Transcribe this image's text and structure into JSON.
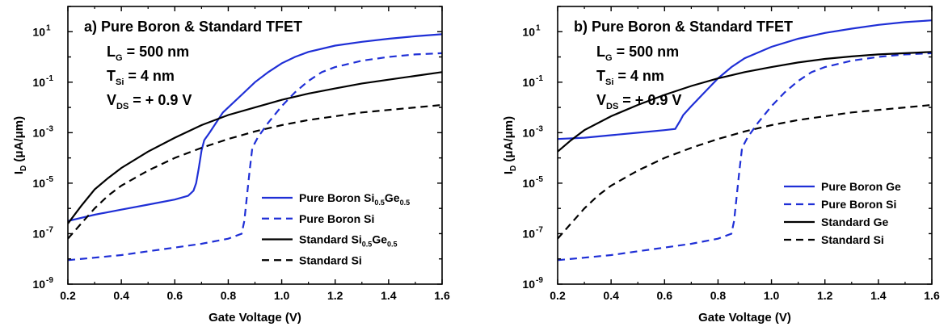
{
  "chart_data": [
    {
      "type": "line",
      "panel_label": "a)",
      "title": "Pure Boron & Standard TFET",
      "annotations": [
        {
          "main": "L",
          "sub": "G",
          "rest": " = 500 nm"
        },
        {
          "main": "T",
          "sub": "Si",
          "rest": " = 4 nm"
        },
        {
          "main": "V",
          "sub": "DS",
          "rest": " = + 0.9 V"
        }
      ],
      "xlabel": "Gate Voltage (V)",
      "ylabel": {
        "main": "I",
        "sub": "D",
        "rest": " (μA/μm)"
      },
      "xlim": [
        0.2,
        1.6
      ],
      "ylim_log10": [
        -9,
        2
      ],
      "yscale": "log",
      "x_ticks": [
        "0.2",
        "0.4",
        "0.6",
        "0.8",
        "1.0",
        "1.2",
        "1.4",
        "1.6"
      ],
      "y_ticks": [
        {
          "base": "10",
          "exp": "1"
        },
        {
          "base": "10",
          "exp": "-1"
        },
        {
          "base": "10",
          "exp": "-3"
        },
        {
          "base": "10",
          "exp": "-5"
        },
        {
          "base": "10",
          "exp": "-7"
        },
        {
          "base": "10",
          "exp": "-9"
        }
      ],
      "legend_position": "lower-right",
      "series": [
        {
          "name_parts": [
            {
              "t": "Pure Boron Si"
            },
            {
              "t": "0.5",
              "sub": true
            },
            {
              "t": "Ge"
            },
            {
              "t": "0.5",
              "sub": true
            }
          ],
          "color": "#1f2fd6",
          "style": "solid",
          "points": [
            [
              0.2,
              -6.5
            ],
            [
              0.3,
              -6.25
            ],
            [
              0.4,
              -6.05
            ],
            [
              0.5,
              -5.85
            ],
            [
              0.6,
              -5.65
            ],
            [
              0.65,
              -5.5
            ],
            [
              0.67,
              -5.3
            ],
            [
              0.68,
              -5.0
            ],
            [
              0.69,
              -4.4
            ],
            [
              0.7,
              -3.7
            ],
            [
              0.71,
              -3.3
            ],
            [
              0.73,
              -3.0
            ],
            [
              0.78,
              -2.2
            ],
            [
              0.85,
              -1.5
            ],
            [
              0.9,
              -1.0
            ],
            [
              0.95,
              -0.6
            ],
            [
              1.0,
              -0.25
            ],
            [
              1.05,
              0.0
            ],
            [
              1.1,
              0.2
            ],
            [
              1.2,
              0.45
            ],
            [
              1.3,
              0.6
            ],
            [
              1.4,
              0.72
            ],
            [
              1.5,
              0.82
            ],
            [
              1.6,
              0.9
            ]
          ]
        },
        {
          "name_parts": [
            {
              "t": "Pure Boron Si"
            }
          ],
          "color": "#1f2fd6",
          "style": "dashed",
          "points": [
            [
              0.2,
              -8.05
            ],
            [
              0.3,
              -7.95
            ],
            [
              0.4,
              -7.85
            ],
            [
              0.5,
              -7.7
            ],
            [
              0.6,
              -7.55
            ],
            [
              0.7,
              -7.4
            ],
            [
              0.8,
              -7.2
            ],
            [
              0.85,
              -7.0
            ],
            [
              0.86,
              -6.5
            ],
            [
              0.87,
              -5.5
            ],
            [
              0.88,
              -4.5
            ],
            [
              0.89,
              -3.6
            ],
            [
              0.91,
              -3.2
            ],
            [
              0.95,
              -2.6
            ],
            [
              1.0,
              -1.95
            ],
            [
              1.05,
              -1.4
            ],
            [
              1.1,
              -0.95
            ],
            [
              1.15,
              -0.6
            ],
            [
              1.2,
              -0.4
            ],
            [
              1.3,
              -0.15
            ],
            [
              1.4,
              0.0
            ],
            [
              1.5,
              0.1
            ],
            [
              1.6,
              0.15
            ]
          ]
        },
        {
          "name_parts": [
            {
              "t": "Standard Si"
            },
            {
              "t": "0.5",
              "sub": true
            },
            {
              "t": "Ge"
            },
            {
              "t": "0.5",
              "sub": true
            }
          ],
          "color": "#000000",
          "style": "solid",
          "points": [
            [
              0.2,
              -6.6
            ],
            [
              0.25,
              -5.9
            ],
            [
              0.3,
              -5.25
            ],
            [
              0.35,
              -4.8
            ],
            [
              0.4,
              -4.4
            ],
            [
              0.5,
              -3.75
            ],
            [
              0.6,
              -3.2
            ],
            [
              0.7,
              -2.7
            ],
            [
              0.8,
              -2.3
            ],
            [
              0.9,
              -2.0
            ],
            [
              1.0,
              -1.7
            ],
            [
              1.1,
              -1.45
            ],
            [
              1.2,
              -1.25
            ],
            [
              1.3,
              -1.05
            ],
            [
              1.4,
              -0.9
            ],
            [
              1.5,
              -0.75
            ],
            [
              1.6,
              -0.6
            ]
          ]
        },
        {
          "name_parts": [
            {
              "t": "Standard Si"
            }
          ],
          "color": "#000000",
          "style": "dashed",
          "points": [
            [
              0.2,
              -7.2
            ],
            [
              0.25,
              -6.6
            ],
            [
              0.3,
              -6.0
            ],
            [
              0.35,
              -5.5
            ],
            [
              0.4,
              -5.1
            ],
            [
              0.5,
              -4.5
            ],
            [
              0.6,
              -4.0
            ],
            [
              0.7,
              -3.6
            ],
            [
              0.8,
              -3.25
            ],
            [
              0.9,
              -2.95
            ],
            [
              1.0,
              -2.7
            ],
            [
              1.1,
              -2.5
            ],
            [
              1.2,
              -2.35
            ],
            [
              1.3,
              -2.2
            ],
            [
              1.4,
              -2.1
            ],
            [
              1.5,
              -2.0
            ],
            [
              1.6,
              -1.9
            ]
          ]
        }
      ]
    },
    {
      "type": "line",
      "panel_label": "b)",
      "title": "Pure Boron & Standard TFET",
      "annotations": [
        {
          "main": "L",
          "sub": "G",
          "rest": " = 500 nm"
        },
        {
          "main": "T",
          "sub": "Si",
          "rest": " = 4 nm"
        },
        {
          "main": "V",
          "sub": "DS",
          "rest": " = + 0.9 V"
        }
      ],
      "xlabel": "Gate Voltage (V)",
      "ylabel": {
        "main": "I",
        "sub": "D",
        "rest": " (μA/μm)"
      },
      "xlim": [
        0.2,
        1.6
      ],
      "ylim_log10": [
        -9,
        2
      ],
      "yscale": "log",
      "x_ticks": [
        "0.2",
        "0.4",
        "0.6",
        "0.8",
        "1.0",
        "1.2",
        "1.4",
        "1.6"
      ],
      "y_ticks": [
        {
          "base": "10",
          "exp": "1"
        },
        {
          "base": "10",
          "exp": "-1"
        },
        {
          "base": "10",
          "exp": "-3"
        },
        {
          "base": "10",
          "exp": "-5"
        },
        {
          "base": "10",
          "exp": "-7"
        },
        {
          "base": "10",
          "exp": "-9"
        }
      ],
      "legend_position": "lower-right",
      "series": [
        {
          "name_parts": [
            {
              "t": "Pure Boron Ge"
            }
          ],
          "color": "#1f2fd6",
          "style": "solid",
          "points": [
            [
              0.2,
              -3.25
            ],
            [
              0.3,
              -3.2
            ],
            [
              0.4,
              -3.1
            ],
            [
              0.5,
              -3.0
            ],
            [
              0.6,
              -2.9
            ],
            [
              0.64,
              -2.85
            ],
            [
              0.66,
              -2.5
            ],
            [
              0.67,
              -2.3
            ],
            [
              0.7,
              -1.95
            ],
            [
              0.75,
              -1.4
            ],
            [
              0.8,
              -0.85
            ],
            [
              0.85,
              -0.4
            ],
            [
              0.9,
              -0.05
            ],
            [
              1.0,
              0.4
            ],
            [
              1.1,
              0.72
            ],
            [
              1.2,
              0.95
            ],
            [
              1.3,
              1.12
            ],
            [
              1.4,
              1.27
            ],
            [
              1.5,
              1.38
            ],
            [
              1.6,
              1.45
            ]
          ]
        },
        {
          "name_parts": [
            {
              "t": "Pure Boron Si"
            }
          ],
          "color": "#1f2fd6",
          "style": "dashed",
          "points": [
            [
              0.2,
              -8.05
            ],
            [
              0.3,
              -7.95
            ],
            [
              0.4,
              -7.85
            ],
            [
              0.5,
              -7.7
            ],
            [
              0.6,
              -7.55
            ],
            [
              0.7,
              -7.4
            ],
            [
              0.8,
              -7.2
            ],
            [
              0.85,
              -7.0
            ],
            [
              0.86,
              -6.5
            ],
            [
              0.87,
              -5.5
            ],
            [
              0.88,
              -4.5
            ],
            [
              0.89,
              -3.6
            ],
            [
              0.91,
              -3.2
            ],
            [
              0.95,
              -2.6
            ],
            [
              1.0,
              -1.95
            ],
            [
              1.05,
              -1.4
            ],
            [
              1.1,
              -0.95
            ],
            [
              1.15,
              -0.6
            ],
            [
              1.2,
              -0.4
            ],
            [
              1.3,
              -0.15
            ],
            [
              1.4,
              0.0
            ],
            [
              1.5,
              0.1
            ],
            [
              1.6,
              0.15
            ]
          ]
        },
        {
          "name_parts": [
            {
              "t": "Standard Ge"
            }
          ],
          "color": "#000000",
          "style": "solid",
          "points": [
            [
              0.2,
              -3.75
            ],
            [
              0.25,
              -3.3
            ],
            [
              0.3,
              -2.9
            ],
            [
              0.4,
              -2.35
            ],
            [
              0.5,
              -1.9
            ],
            [
              0.6,
              -1.5
            ],
            [
              0.7,
              -1.15
            ],
            [
              0.8,
              -0.85
            ],
            [
              0.9,
              -0.6
            ],
            [
              1.0,
              -0.4
            ],
            [
              1.1,
              -0.22
            ],
            [
              1.2,
              -0.08
            ],
            [
              1.3,
              0.02
            ],
            [
              1.4,
              0.1
            ],
            [
              1.5,
              0.15
            ],
            [
              1.6,
              0.2
            ]
          ]
        },
        {
          "name_parts": [
            {
              "t": "Standard Si"
            }
          ],
          "color": "#000000",
          "style": "dashed",
          "points": [
            [
              0.2,
              -7.2
            ],
            [
              0.25,
              -6.6
            ],
            [
              0.3,
              -6.0
            ],
            [
              0.35,
              -5.5
            ],
            [
              0.4,
              -5.1
            ],
            [
              0.5,
              -4.5
            ],
            [
              0.6,
              -4.0
            ],
            [
              0.7,
              -3.6
            ],
            [
              0.8,
              -3.25
            ],
            [
              0.9,
              -2.95
            ],
            [
              1.0,
              -2.7
            ],
            [
              1.1,
              -2.5
            ],
            [
              1.2,
              -2.35
            ],
            [
              1.3,
              -2.2
            ],
            [
              1.4,
              -2.1
            ],
            [
              1.5,
              -2.0
            ],
            [
              1.6,
              -1.9
            ]
          ]
        }
      ]
    }
  ]
}
